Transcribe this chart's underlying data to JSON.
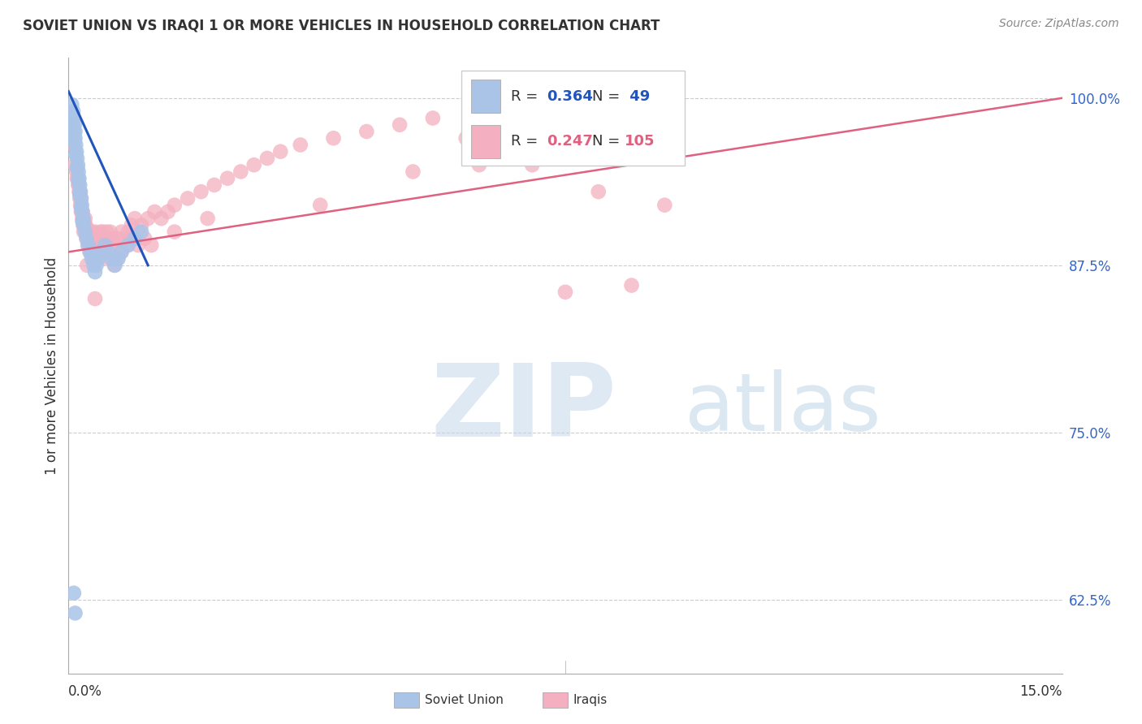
{
  "title": "SOVIET UNION VS IRAQI 1 OR MORE VEHICLES IN HOUSEHOLD CORRELATION CHART",
  "source": "Source: ZipAtlas.com",
  "ylabel": "1 or more Vehicles in Household",
  "xlim": [
    0.0,
    15.0
  ],
  "ylim": [
    57.0,
    103.0
  ],
  "ytick_values": [
    100.0,
    87.5,
    75.0,
    62.5
  ],
  "grid_color": "#cccccc",
  "background_color": "#ffffff",
  "soviet_color": "#aac4e8",
  "iraqi_color": "#f4b0c0",
  "soviet_line_color": "#2255bb",
  "iraqi_line_color": "#e06080",
  "soviet_R": 0.364,
  "soviet_N": 49,
  "iraqi_R": 0.247,
  "iraqi_N": 105,
  "legend_label_soviet": "Soviet Union",
  "legend_label_iraqi": "Iraqis",
  "tick_label_color": "#3366cc",
  "soviet_x": [
    0.05,
    0.07,
    0.08,
    0.09,
    0.1,
    0.1,
    0.11,
    0.12,
    0.13,
    0.14,
    0.15,
    0.16,
    0.17,
    0.18,
    0.19,
    0.2,
    0.21,
    0.22,
    0.23,
    0.25,
    0.27,
    0.3,
    0.32,
    0.35,
    0.38,
    0.4,
    0.42,
    0.45,
    0.5,
    0.55,
    0.6,
    0.65,
    0.7,
    0.75,
    0.8,
    0.9,
    1.0,
    1.1,
    0.06,
    0.08,
    0.09,
    0.11,
    0.13,
    0.15,
    0.17,
    0.19,
    0.21,
    0.08,
    0.1
  ],
  "soviet_y": [
    99.5,
    99.0,
    98.5,
    98.0,
    97.5,
    97.0,
    96.5,
    96.0,
    95.5,
    95.0,
    94.5,
    94.0,
    93.5,
    93.0,
    92.5,
    92.0,
    91.5,
    91.0,
    90.5,
    90.0,
    89.5,
    89.0,
    88.5,
    88.0,
    87.5,
    87.0,
    87.5,
    88.0,
    88.5,
    89.0,
    88.5,
    88.0,
    87.5,
    88.0,
    88.5,
    89.0,
    89.5,
    90.0,
    98.0,
    97.5,
    96.8,
    95.8,
    94.8,
    93.8,
    92.8,
    91.8,
    90.8,
    63.0,
    61.5
  ],
  "iraqi_x": [
    0.08,
    0.1,
    0.12,
    0.14,
    0.15,
    0.16,
    0.17,
    0.18,
    0.19,
    0.2,
    0.21,
    0.22,
    0.23,
    0.24,
    0.25,
    0.26,
    0.27,
    0.28,
    0.29,
    0.3,
    0.31,
    0.32,
    0.33,
    0.34,
    0.35,
    0.36,
    0.38,
    0.4,
    0.42,
    0.44,
    0.46,
    0.48,
    0.5,
    0.52,
    0.55,
    0.58,
    0.6,
    0.63,
    0.65,
    0.7,
    0.75,
    0.8,
    0.85,
    0.9,
    0.95,
    1.0,
    1.1,
    1.2,
    1.3,
    1.4,
    1.5,
    1.6,
    1.8,
    2.0,
    2.2,
    2.4,
    2.6,
    2.8,
    3.0,
    3.2,
    3.5,
    4.0,
    4.5,
    5.0,
    5.5,
    6.0,
    6.5,
    7.0,
    8.0,
    9.0,
    0.13,
    0.15,
    0.17,
    0.19,
    0.21,
    0.23,
    0.25,
    0.27,
    0.3,
    0.33,
    0.37,
    0.41,
    0.45,
    0.49,
    0.54,
    0.59,
    0.64,
    0.69,
    0.74,
    0.8,
    0.88,
    0.97,
    1.05,
    1.15,
    1.25,
    1.6,
    2.1,
    3.8,
    0.4,
    5.2,
    6.2,
    7.5,
    8.5,
    0.28,
    0.35
  ],
  "iraqi_y": [
    96.5,
    95.0,
    94.5,
    94.0,
    93.5,
    93.0,
    92.5,
    92.0,
    91.5,
    91.5,
    91.0,
    90.5,
    90.0,
    90.5,
    91.0,
    90.5,
    90.0,
    89.5,
    89.0,
    89.5,
    90.0,
    89.5,
    89.0,
    89.5,
    90.0,
    89.0,
    89.5,
    90.0,
    89.5,
    89.0,
    89.5,
    90.0,
    89.5,
    90.0,
    89.5,
    90.0,
    89.5,
    90.0,
    89.5,
    89.0,
    89.5,
    90.0,
    89.5,
    90.0,
    90.5,
    91.0,
    90.5,
    91.0,
    91.5,
    91.0,
    91.5,
    92.0,
    92.5,
    93.0,
    93.5,
    94.0,
    94.5,
    95.0,
    95.5,
    96.0,
    96.5,
    97.0,
    97.5,
    98.0,
    98.5,
    97.0,
    96.0,
    95.0,
    93.0,
    92.0,
    94.0,
    93.5,
    93.0,
    92.5,
    91.5,
    91.0,
    90.5,
    90.0,
    89.5,
    88.5,
    88.0,
    88.5,
    89.0,
    89.5,
    88.5,
    88.0,
    88.5,
    87.5,
    88.0,
    88.5,
    89.0,
    89.5,
    89.0,
    89.5,
    89.0,
    90.0,
    91.0,
    92.0,
    85.0,
    94.5,
    95.0,
    85.5,
    86.0,
    87.5,
    88.5
  ],
  "iraqi_line_x0": 0.0,
  "iraqi_line_y0": 88.5,
  "iraqi_line_x1": 15.0,
  "iraqi_line_y1": 100.0,
  "soviet_line_x0": 0.0,
  "soviet_line_y0": 100.5,
  "soviet_line_x1": 1.2,
  "soviet_line_y1": 87.5
}
